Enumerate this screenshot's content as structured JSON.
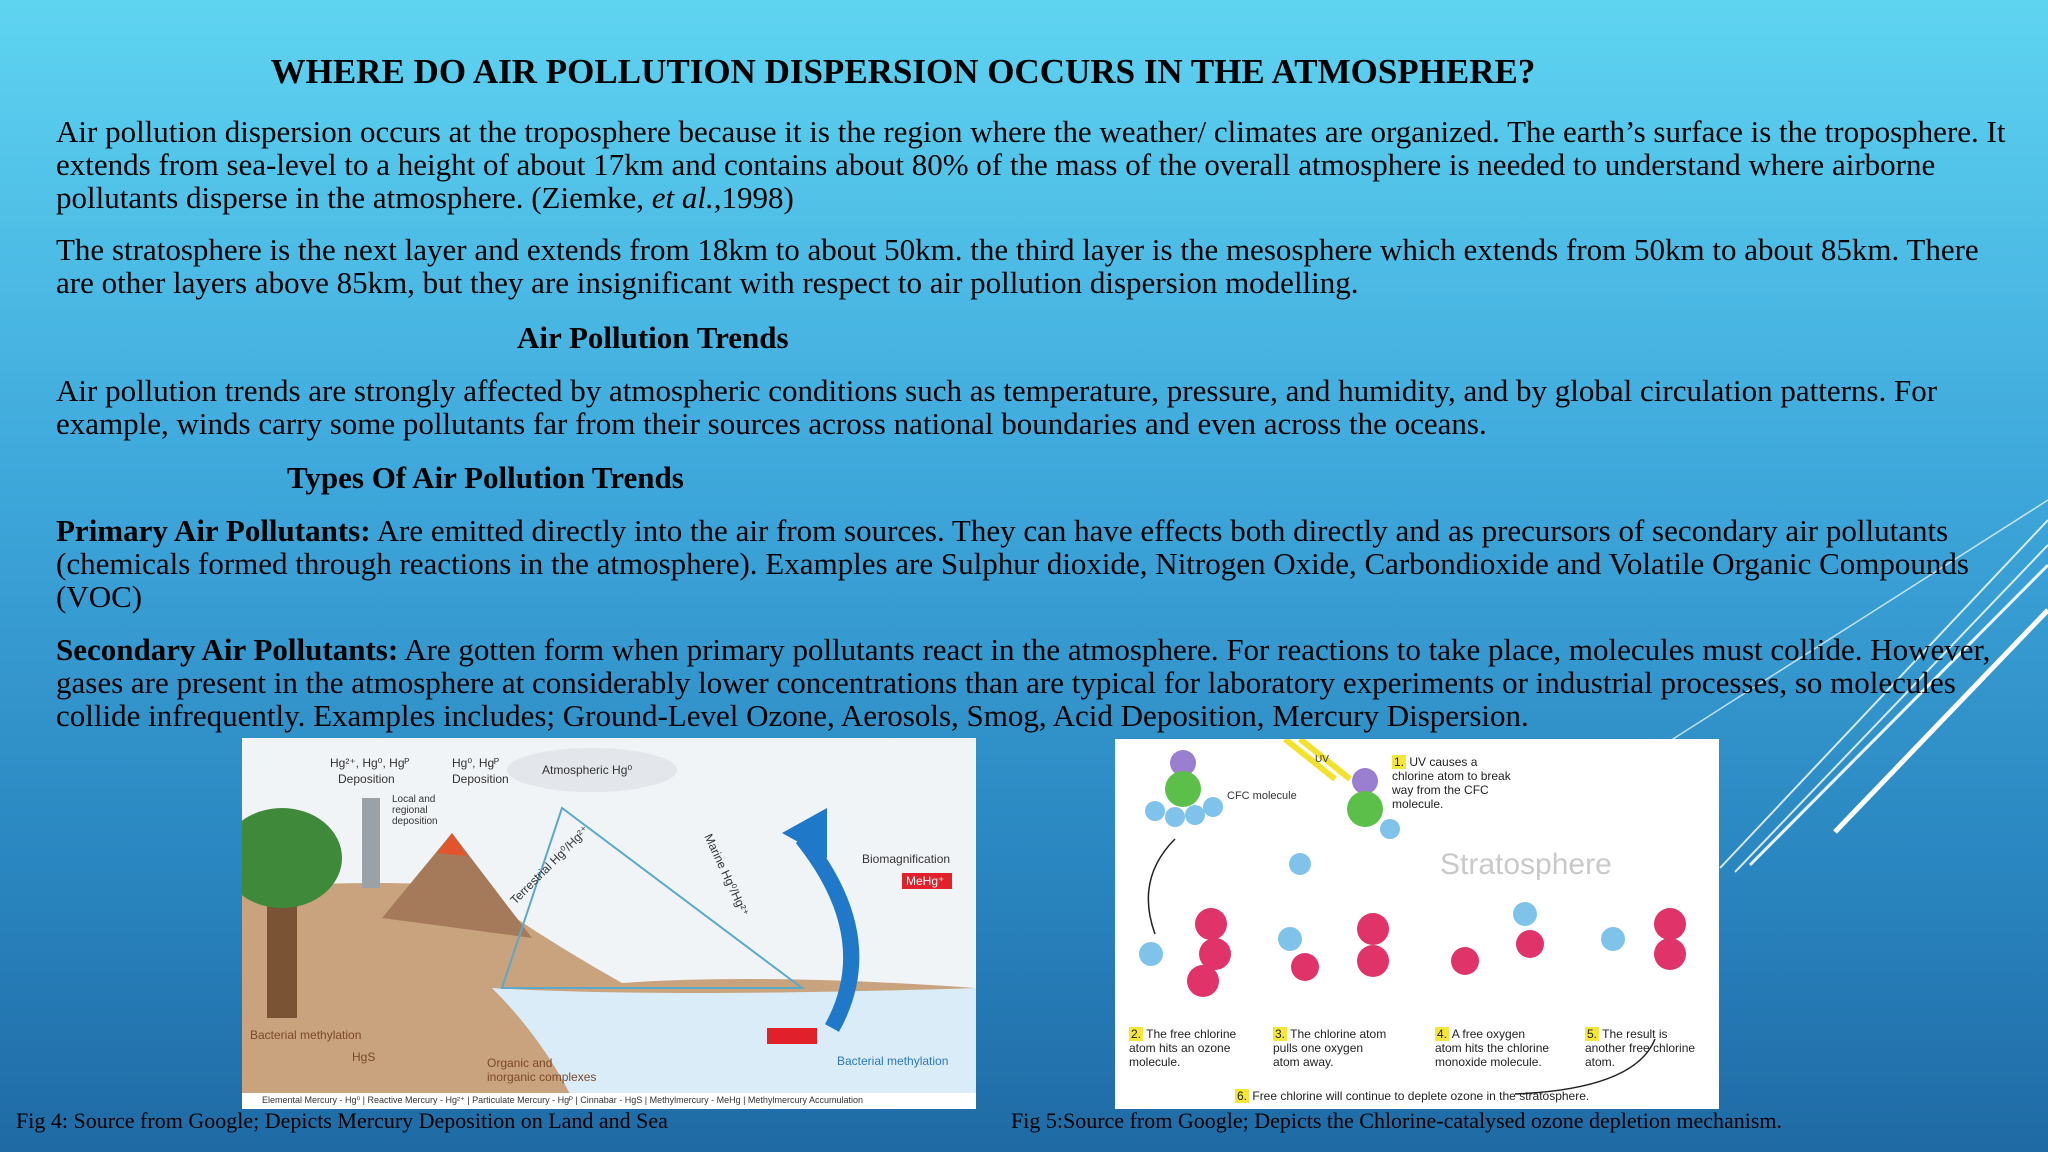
{
  "title": "WHERE DO AIR POLLUTION DISPERSION OCCURS IN THE ATMOSPHERE?",
  "intro": {
    "p1": {
      "before": "Air pollution dispersion occurs at the troposphere because it is the region where the weather/ climates are organized. The earth’s surface is the troposphere. It extends from sea-level to a height of about 17km and contains about 80% of the mass of the overall atmosphere is needed to understand where airborne pollutants disperse in the atmosphere. (Ziemke, ",
      "italic": "et al.,",
      "after": "1998)"
    },
    "p2": "The stratosphere is the next layer and extends from 18km to about 50km. the third layer is the mesosphere which extends from 50km to about 85km. There are other layers above 85km, but they are insignificant with respect to air pollution dispersion modelling."
  },
  "section1": {
    "heading": "Air Pollution Trends",
    "text": "Air pollution trends are strongly affected by atmospheric conditions such as temperature, pressure, and humidity, and by global circulation patterns. For example, winds carry some pollutants far from their sources across national boundaries and even across the oceans."
  },
  "section2": {
    "heading": "Types Of Air Pollution Trends",
    "primary": {
      "label": "Primary Air Pollutants:",
      "text": " Are emitted directly into the air from sources. They can have effects both directly and as precursors of secondary air pollutants (chemicals formed through reactions in the atmosphere). Examples are Sulphur dioxide, Nitrogen Oxide, Carbondioxide and Volatile Organic Compounds (VOC)"
    },
    "secondary": {
      "label": "Secondary  Air Pollutants:",
      "text": " Are gotten form when primary pollutants react in the atmosphere. For reactions to take place, molecules must collide. However, gases are present in the atmosphere at considerably lower concentrations than are typical for laboratory experiments or industrial processes, so molecules collide infrequently. Examples includes; Ground-Level Ozone, Aerosols, Smog, Acid Deposition, Mercury Dispersion."
    }
  },
  "figures": [
    {
      "caption": "Fig 4: Source from Google; Depicts Mercury Deposition on Land and Sea",
      "labels": [
        "Hg²⁺, Hg⁰, Hgᴾ",
        "Deposition",
        "Hg⁰, Hgᴾ",
        "Deposition",
        "Local and regional deposition",
        "Atmospheric Hg⁰",
        "Terrestrial Hg⁰/Hg²⁺",
        "Marine Hg⁰/Hg²⁺",
        "Biomagnification",
        "MeHg⁺",
        "Bacterial methylation",
        "Organic and inorganic complexes",
        "HgS",
        "Bacterial methylation",
        "Elemental Mercury - Hg⁰ | Reactive Mercury - Hg²⁺ | Particulate Mercury - Hgᴾ | Cinnabar - HgS | Methylmercury - MeHg | Methylmercury Accumulation"
      ]
    },
    {
      "caption": "Fig 5:Source from Google; Depicts the Chlorine-catalysed ozone depletion mechanism.",
      "labels": [
        "CFC molecule",
        "UV",
        "Stratosphere"
      ],
      "steps": [
        {
          "num": "1.",
          "text": "UV causes a chlorine atom to break way from the CFC molecule."
        },
        {
          "num": "2.",
          "text": "The free chlorine atom hits an ozone molecule."
        },
        {
          "num": "3.",
          "text": "The chlorine atom pulls one oxygen atom away."
        },
        {
          "num": "4.",
          "text": "A free oxygen atom hits the chlorine monoxide molecule."
        },
        {
          "num": "5.",
          "text": "The result is another free chlorine atom."
        },
        {
          "num": "6.",
          "text": "Free chlorine will continue to deplete ozone in the stratosphere."
        }
      ]
    }
  ]
}
